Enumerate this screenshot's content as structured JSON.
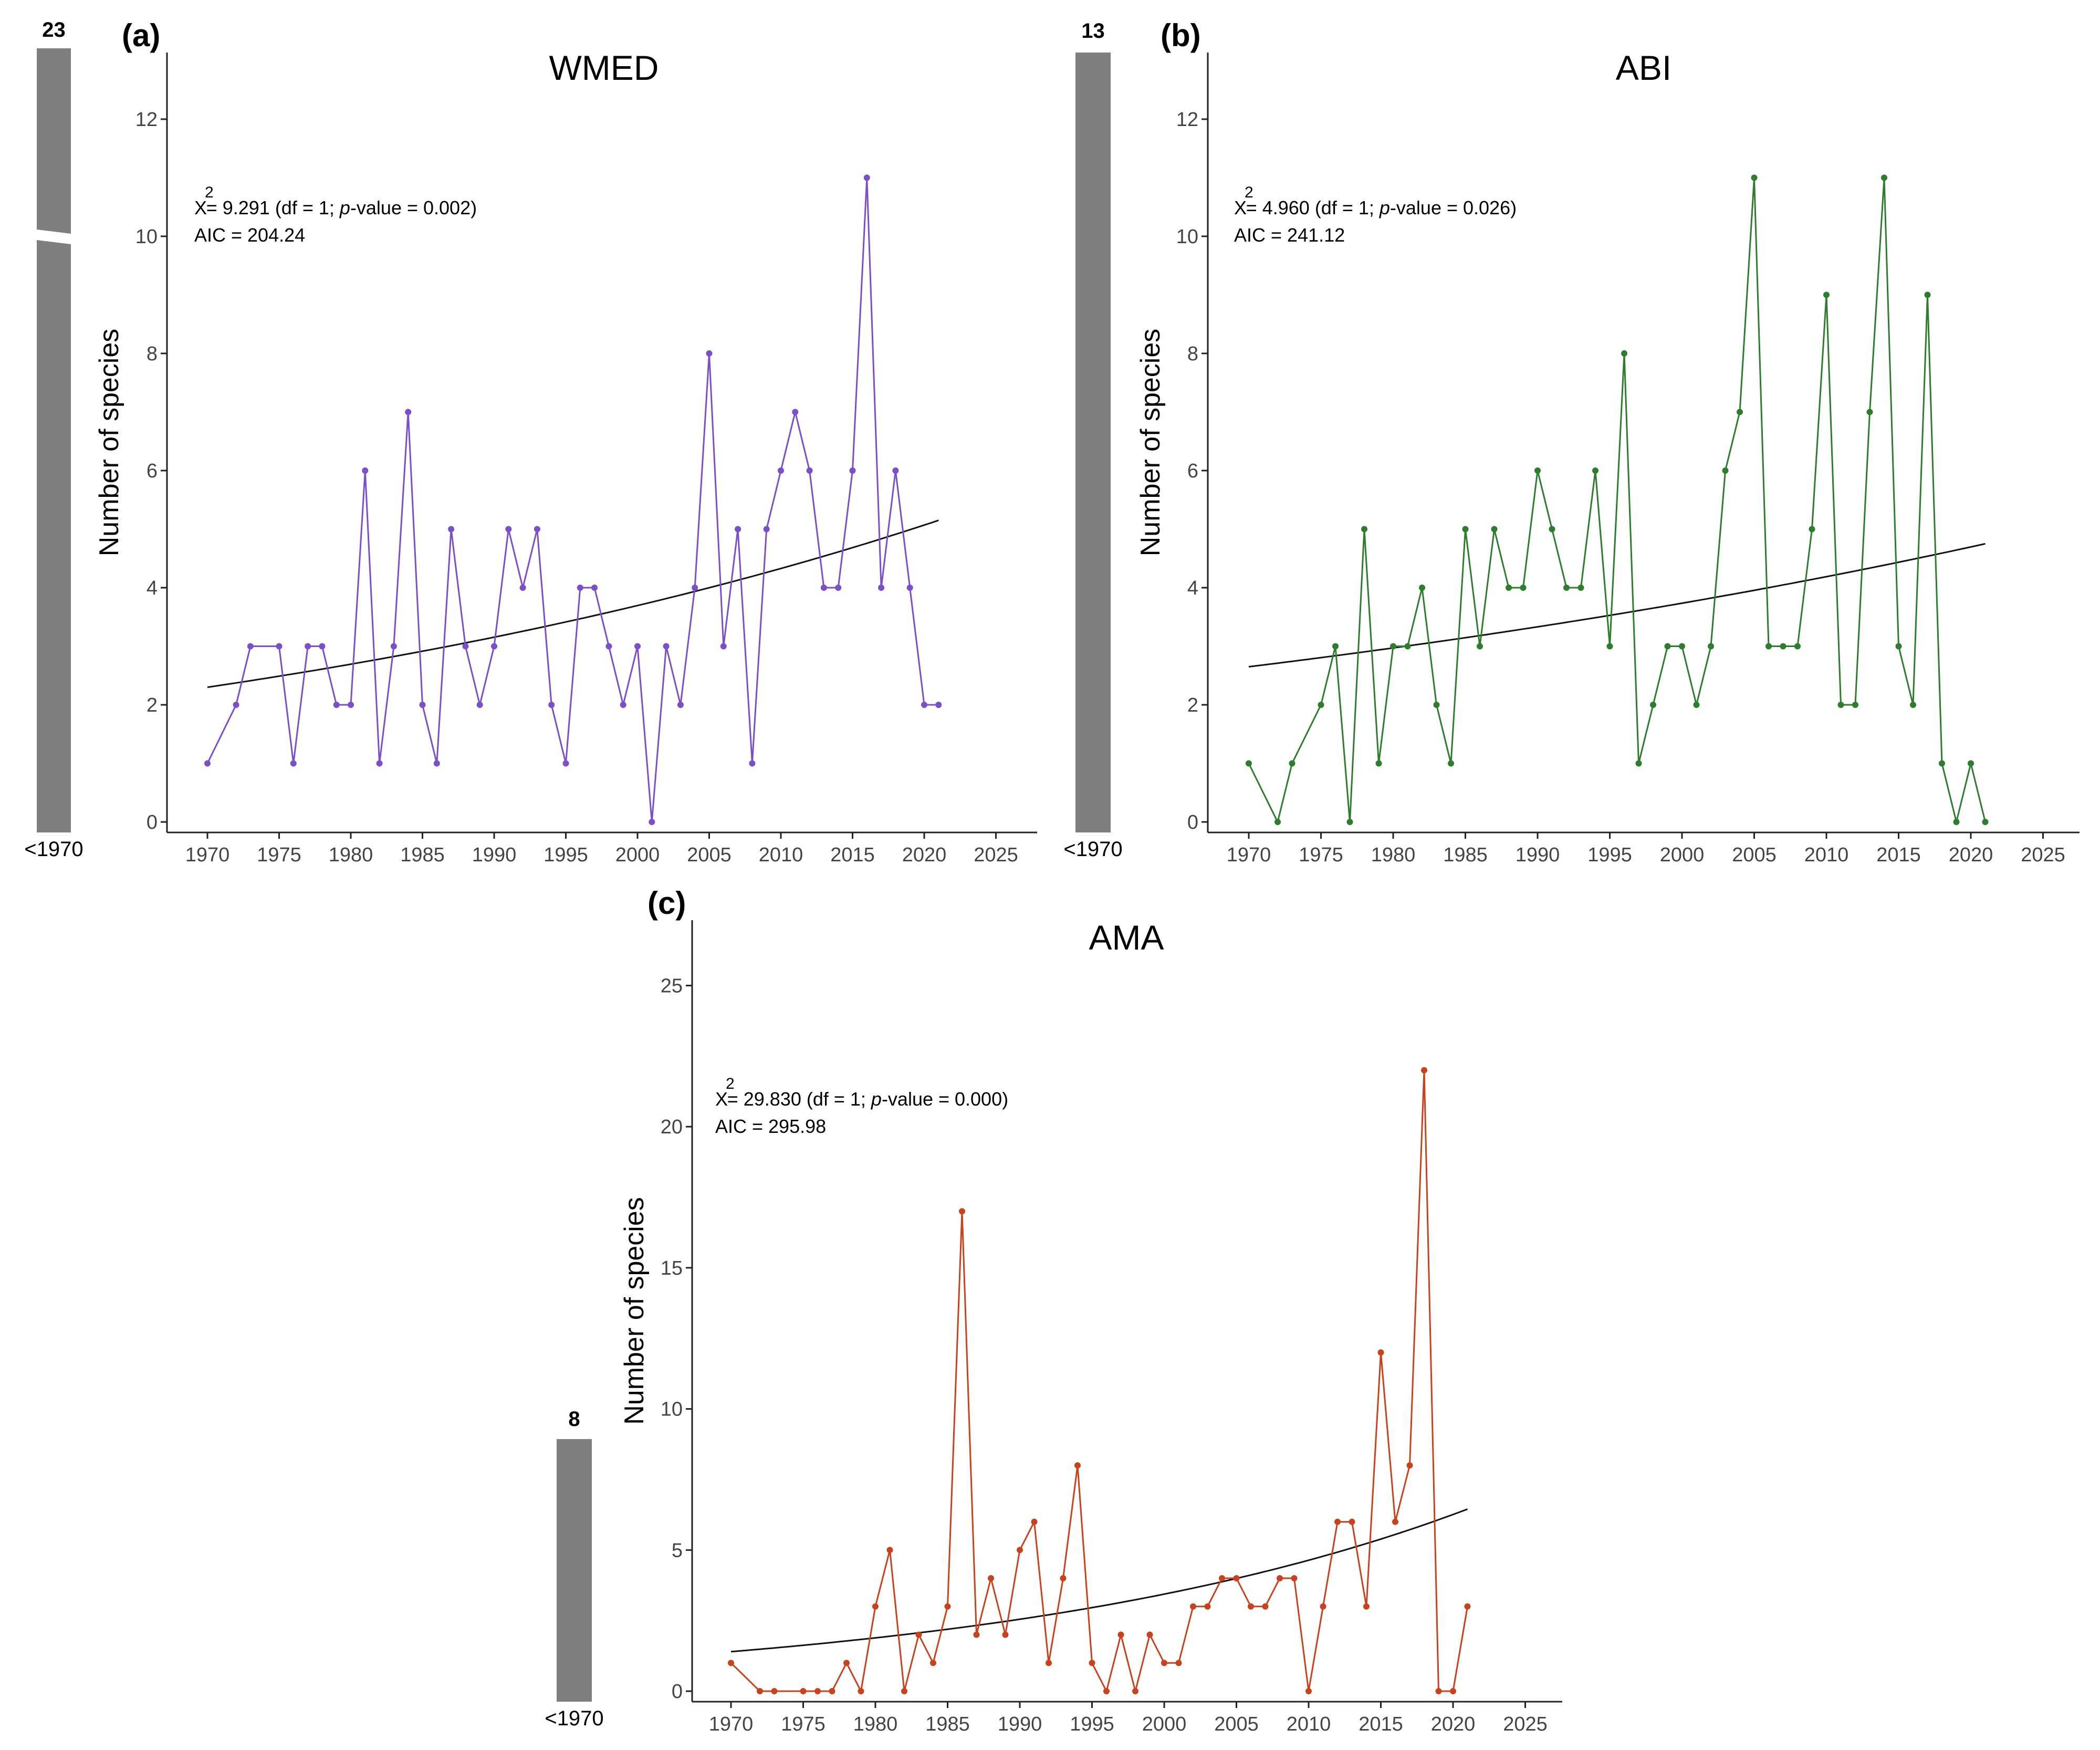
{
  "chart_data": [
    {
      "panel": "(a)",
      "type": "line",
      "title": "WMED",
      "ylabel": "Number of species",
      "xlabel": "",
      "stat_line1": "= 9.291 (df = 1;",
      "stat_p_label": "p",
      "stat_line1_end": "-value = 0.002)",
      "stat_x": "X",
      "stat_sup": "2",
      "aic": "AIC = 204.24",
      "pre1970": {
        "label": "<1970",
        "value": 23,
        "value_text": "23",
        "broken_axis": true
      },
      "xlim": [
        1967,
        2027
      ],
      "ylim": [
        0,
        12.6
      ],
      "x_ticks": [
        1970,
        1975,
        1980,
        1985,
        1990,
        1995,
        2000,
        2005,
        2010,
        2015,
        2020,
        2025
      ],
      "y_ticks": [
        0,
        2,
        4,
        6,
        8,
        10,
        12
      ],
      "color": "#7b4fc9",
      "trend_color": "#111111",
      "trend": {
        "x_start": 1970,
        "y_start": 2.3,
        "x_end": 2021,
        "y_end": 5.15
      },
      "x": [
        1970,
        1972,
        1973,
        1975,
        1976,
        1977,
        1978,
        1979,
        1980,
        1981,
        1982,
        1983,
        1984,
        1985,
        1986,
        1987,
        1988,
        1989,
        1990,
        1991,
        1992,
        1993,
        1994,
        1995,
        1996,
        1997,
        1998,
        1999,
        2000,
        2001,
        2002,
        2003,
        2004,
        2005,
        2006,
        2007,
        2008,
        2009,
        2010,
        2011,
        2012,
        2013,
        2014,
        2015,
        2016,
        2017,
        2018,
        2019,
        2020,
        2021
      ],
      "values": [
        1,
        2,
        3,
        3,
        1,
        3,
        3,
        2,
        2,
        6,
        1,
        3,
        7,
        2,
        1,
        5,
        3,
        2,
        3,
        5,
        4,
        5,
        2,
        1,
        4,
        4,
        3,
        2,
        3,
        0,
        3,
        2,
        4,
        8,
        3,
        5,
        1,
        5,
        6,
        7,
        6,
        4,
        4,
        6,
        11,
        4,
        6,
        4,
        2,
        2
      ]
    },
    {
      "panel": "(b)",
      "type": "line",
      "title": "ABI",
      "ylabel": "Number of species",
      "xlabel": "",
      "stat_line1": "= 4.960 (df = 1;",
      "stat_p_label": "p",
      "stat_line1_end": "-value = 0.026)",
      "stat_x": "X",
      "stat_sup": "2",
      "aic": "AIC = 241.12",
      "pre1970": {
        "label": "<1970",
        "value": 13,
        "value_text": "13",
        "broken_axis": false
      },
      "xlim": [
        1967,
        2027
      ],
      "ylim": [
        0,
        12.6
      ],
      "x_ticks": [
        1970,
        1975,
        1980,
        1985,
        1990,
        1995,
        2000,
        2005,
        2010,
        2015,
        2020,
        2025
      ],
      "y_ticks": [
        0,
        2,
        4,
        6,
        8,
        10,
        12
      ],
      "color": "#2e7d2e",
      "trend_color": "#111111",
      "trend": {
        "x_start": 1970,
        "y_start": 2.65,
        "x_end": 2021,
        "y_end": 4.75
      },
      "x": [
        1970,
        1972,
        1973,
        1975,
        1976,
        1977,
        1978,
        1979,
        1980,
        1981,
        1982,
        1983,
        1984,
        1985,
        1986,
        1987,
        1988,
        1989,
        1990,
        1991,
        1992,
        1993,
        1994,
        1995,
        1996,
        1997,
        1998,
        1999,
        2000,
        2001,
        2002,
        2003,
        2004,
        2005,
        2006,
        2007,
        2008,
        2009,
        2010,
        2011,
        2012,
        2013,
        2014,
        2015,
        2016,
        2017,
        2018,
        2019,
        2020,
        2021
      ],
      "values": [
        1,
        0,
        1,
        2,
        3,
        0,
        5,
        1,
        3,
        3,
        4,
        2,
        1,
        5,
        3,
        5,
        4,
        4,
        6,
        5,
        4,
        4,
        6,
        3,
        8,
        1,
        2,
        3,
        3,
        2,
        3,
        6,
        7,
        11,
        3,
        3,
        3,
        5,
        9,
        2,
        2,
        7,
        11,
        3,
        2,
        9,
        1,
        0,
        1,
        0
      ]
    },
    {
      "panel": "(c)",
      "type": "line",
      "title": "AMA",
      "ylabel": "Number of species",
      "xlabel": "",
      "stat_line1": "= 29.830 (df = 1;",
      "stat_p_label": "p",
      "stat_line1_end": "-value = 0.000)",
      "stat_x": "X",
      "stat_sup": "2",
      "aic": "AIC = 295.98",
      "pre1970": {
        "label": "<1970",
        "value": 8,
        "value_text": "8",
        "broken_axis": false
      },
      "xlim": [
        1967,
        2027
      ],
      "ylim": [
        0,
        26.2
      ],
      "x_ticks": [
        1970,
        1975,
        1980,
        1985,
        1990,
        1995,
        2000,
        2005,
        2010,
        2015,
        2020,
        2025
      ],
      "y_ticks": [
        0,
        5,
        10,
        15,
        20,
        25
      ],
      "color": "#c8421e",
      "trend_color": "#111111",
      "trend": {
        "x_start": 1970,
        "y_start": 1.4,
        "x_end": 2021,
        "y_end": 6.45
      },
      "x": [
        1970,
        1972,
        1973,
        1975,
        1976,
        1977,
        1978,
        1979,
        1980,
        1981,
        1982,
        1983,
        1984,
        1985,
        1986,
        1987,
        1988,
        1989,
        1990,
        1991,
        1992,
        1993,
        1994,
        1995,
        1996,
        1997,
        1998,
        1999,
        2000,
        2001,
        2002,
        2003,
        2004,
        2005,
        2006,
        2007,
        2008,
        2009,
        2010,
        2011,
        2012,
        2013,
        2014,
        2015,
        2016,
        2017,
        2018,
        2019,
        2020,
        2021
      ],
      "values": [
        1,
        0,
        0,
        0,
        0,
        0,
        1,
        0,
        3,
        5,
        0,
        2,
        1,
        3,
        17,
        2,
        4,
        2,
        5,
        6,
        1,
        4,
        8,
        1,
        0,
        2,
        0,
        2,
        1,
        1,
        3,
        3,
        4,
        4,
        3,
        3,
        4,
        4,
        0,
        3,
        6,
        6,
        3,
        12,
        6,
        8,
        22,
        0,
        0,
        3
      ]
    }
  ]
}
